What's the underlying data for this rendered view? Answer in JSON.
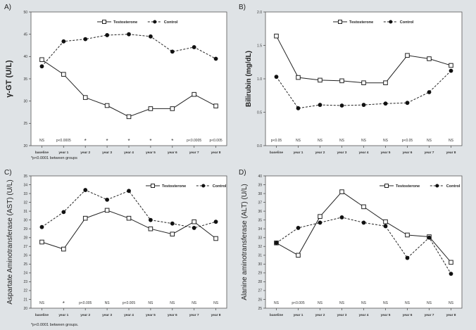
{
  "figure": {
    "footnote_top": "*p<0.0001 between groups",
    "footnote_bottom": "*p<0.0001 between groups."
  },
  "chart_data": [
    {
      "panel": "A)",
      "type": "line",
      "ylabel": "γ-GT (U/L)",
      "categories": [
        "baseline",
        "year 1",
        "year 2",
        "year 3",
        "year 4",
        "year 5",
        "year 6",
        "year 7",
        "year 8"
      ],
      "ylim": [
        20,
        50
      ],
      "yticks": [
        20,
        25,
        30,
        35,
        40,
        45,
        50
      ],
      "legend_position": "top-center",
      "series": [
        {
          "name": "Testosterone",
          "marker": "open-square",
          "line": "solid",
          "values": [
            39.3,
            36.0,
            30.8,
            29.0,
            26.5,
            28.3,
            28.3,
            31.5,
            28.9
          ]
        },
        {
          "name": "Control",
          "marker": "filled-circle",
          "line": "dashed",
          "values": [
            37.8,
            43.4,
            43.9,
            44.8,
            45.0,
            44.5,
            41.1,
            42.1,
            39.5
          ]
        }
      ],
      "annotations": [
        "NS",
        "p<0.0005",
        "*",
        "*",
        "*",
        "*",
        "*",
        "p<0.0005",
        "p<0.005"
      ]
    },
    {
      "panel": "B)",
      "type": "line",
      "ylabel": "Bilirubin (mg/dL)",
      "categories": [
        "baseline",
        "year 1",
        "year 2",
        "year 3",
        "year 4",
        "year 5",
        "year 6",
        "year 7",
        "year 8"
      ],
      "ylim": [
        0,
        2
      ],
      "yticks": [
        0,
        0.5,
        1,
        1.5,
        2
      ],
      "legend_position": "top-center",
      "series": [
        {
          "name": "Testosterone",
          "marker": "open-square",
          "line": "solid",
          "values": [
            1.64,
            1.02,
            0.98,
            0.97,
            0.94,
            0.94,
            1.35,
            1.3,
            1.2
          ]
        },
        {
          "name": "Control",
          "marker": "filled-circle",
          "line": "dashed",
          "values": [
            1.03,
            0.56,
            0.61,
            0.6,
            0.61,
            0.63,
            0.64,
            0.8,
            1.12
          ]
        }
      ],
      "annotations": [
        "p<0.05",
        "NS",
        "NS",
        "NS",
        "NS",
        "NS",
        "p<0.05",
        "NS",
        "NS"
      ]
    },
    {
      "panel": "C)",
      "type": "line",
      "ylabel": "Aspartate Aminotransferase (AST) (U/L)",
      "categories": [
        "baseline",
        "year 1",
        "year 2",
        "year 3",
        "year 4",
        "year 5",
        "year 6",
        "year 7",
        "year 8"
      ],
      "ylim": [
        20,
        35
      ],
      "yticks": [
        20,
        21,
        22,
        23,
        24,
        25,
        26,
        27,
        28,
        29,
        30,
        31,
        32,
        33,
        34,
        35
      ],
      "legend_position": "top-right",
      "series": [
        {
          "name": "Testosterone",
          "marker": "open-square",
          "line": "solid",
          "values": [
            27.5,
            26.7,
            30.2,
            31.1,
            30.2,
            29.0,
            28.4,
            29.8,
            27.9
          ]
        },
        {
          "name": "Control",
          "marker": "filled-circle",
          "line": "dashed",
          "values": [
            29.2,
            30.9,
            33.4,
            32.3,
            33.3,
            30.0,
            29.6,
            29.1,
            29.8
          ]
        }
      ],
      "annotations": [
        "NS",
        "*",
        "p<0.005",
        "NS",
        "p<0.005",
        "NS",
        "NS",
        "NS",
        "NS"
      ]
    },
    {
      "panel": "D)",
      "type": "line",
      "ylabel": "Alanine aminotransferase (ALT) (U/L)",
      "categories": [
        "baseline",
        "year 1",
        "year 2",
        "year 3",
        "year 4",
        "year 5",
        "year 6",
        "year 7",
        "year 8"
      ],
      "ylim": [
        25,
        40
      ],
      "yticks": [
        25,
        26,
        27,
        28,
        29,
        30,
        31,
        32,
        33,
        34,
        35,
        36,
        37,
        38,
        39,
        40
      ],
      "legend_position": "top-right",
      "series": [
        {
          "name": "Testosterone",
          "marker": "open-square",
          "line": "solid",
          "values": [
            32.4,
            31.0,
            35.4,
            38.2,
            36.5,
            34.8,
            33.3,
            33.1,
            30.2
          ]
        },
        {
          "name": "Control",
          "marker": "filled-circle",
          "line": "dashed",
          "values": [
            32.4,
            34.1,
            34.7,
            35.3,
            34.7,
            34.3,
            30.7,
            33.0,
            28.9
          ]
        }
      ],
      "annotations": [
        "NS",
        "p<0.005",
        "NS",
        "NS",
        "NS",
        "NS",
        "NS",
        "NS",
        "NS"
      ]
    }
  ]
}
